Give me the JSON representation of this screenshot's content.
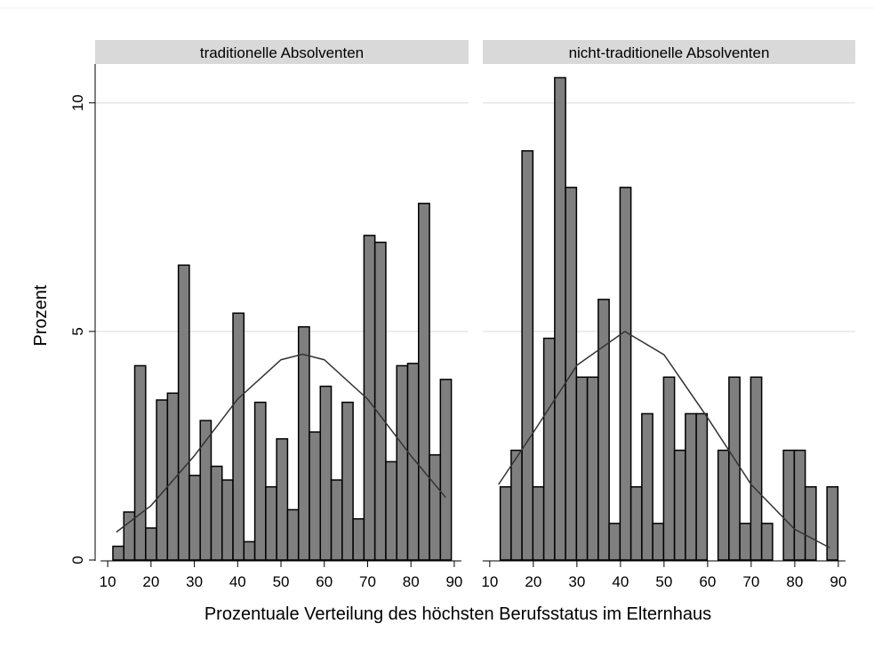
{
  "xlabel": "Prozentuale Verteilung des höchsten Berufsstatus im Elternhaus",
  "ylabel": "Prozent",
  "chart_data": [
    {
      "type": "histogram",
      "title": "traditionelle Absolventen",
      "color": "#7f7f7f",
      "bins": [
        11.2,
        13.72,
        16.24,
        18.76,
        21.28,
        23.8,
        26.32,
        28.84,
        31.36,
        33.88,
        36.4,
        38.92,
        41.44,
        43.96,
        46.48,
        49,
        51.52,
        54.04,
        56.56,
        59.08,
        61.6,
        64.12,
        66.64,
        69.16,
        71.68,
        74.2,
        76.72,
        79.24,
        81.76,
        84.28,
        86.8,
        89.32
      ],
      "values": [
        0.3,
        1.05,
        4.25,
        0.7,
        3.5,
        3.65,
        6.45,
        1.85,
        3.05,
        2.05,
        1.75,
        5.4,
        0.4,
        3.45,
        1.6,
        2.65,
        1.1,
        5.1,
        2.8,
        3.8,
        1.75,
        3.45,
        0.9,
        7.1,
        6.95,
        2.15,
        4.25,
        4.3,
        7.8,
        2.3,
        3.95
      ],
      "curve": {
        "x": [
          12,
          20,
          30,
          40,
          50,
          55,
          60,
          70,
          80,
          88
        ],
        "y": [
          0.61,
          1.19,
          2.28,
          3.52,
          4.38,
          4.5,
          4.38,
          3.52,
          2.28,
          1.37
        ],
        "color": "#333333"
      },
      "xlim": [
        7.1,
        93.3
      ],
      "xticks": [
        10,
        20,
        30,
        40,
        50,
        60,
        70,
        80,
        90
      ],
      "ylim": [
        0,
        10.85
      ],
      "yticks": [
        0,
        5,
        10
      ],
      "grid": true
    },
    {
      "type": "histogram",
      "title": "nicht-traditionelle Absolventen",
      "color": "#7f7f7f",
      "bins": [
        12.4,
        14.9,
        17.4,
        19.9,
        22.4,
        24.9,
        27.4,
        29.9,
        32.4,
        34.9,
        37.4,
        39.9,
        42.4,
        44.9,
        47.4,
        49.9,
        52.4,
        54.9,
        57.4,
        59.9,
        62.4,
        64.9,
        67.4,
        69.9,
        72.4,
        74.9,
        77.4,
        79.9,
        82.4,
        84.9,
        87.4,
        89.9
      ],
      "values": [
        1.6,
        2.4,
        8.95,
        1.6,
        4.85,
        10.55,
        8.15,
        4.0,
        4.0,
        5.7,
        0.8,
        8.15,
        1.6,
        3.2,
        0.8,
        4.0,
        2.4,
        3.2,
        3.2,
        0,
        2.4,
        4.0,
        0.8,
        4.0,
        0.8,
        0,
        2.4,
        2.4,
        1.6,
        0,
        1.6
      ],
      "curve": {
        "x": [
          12,
          20,
          30,
          41,
          50,
          60,
          70,
          80,
          88
        ],
        "y": [
          1.65,
          2.79,
          4.26,
          5,
          4.49,
          3.11,
          1.65,
          0.67,
          0.27
        ],
        "color": "#333333"
      },
      "xlim": [
        8.4,
        93.9
      ],
      "xticks": [
        10,
        20,
        30,
        40,
        50,
        60,
        70,
        80,
        90
      ],
      "ylim": [
        0,
        10.85
      ],
      "yticks": [
        0,
        5,
        10
      ],
      "grid": true
    }
  ]
}
